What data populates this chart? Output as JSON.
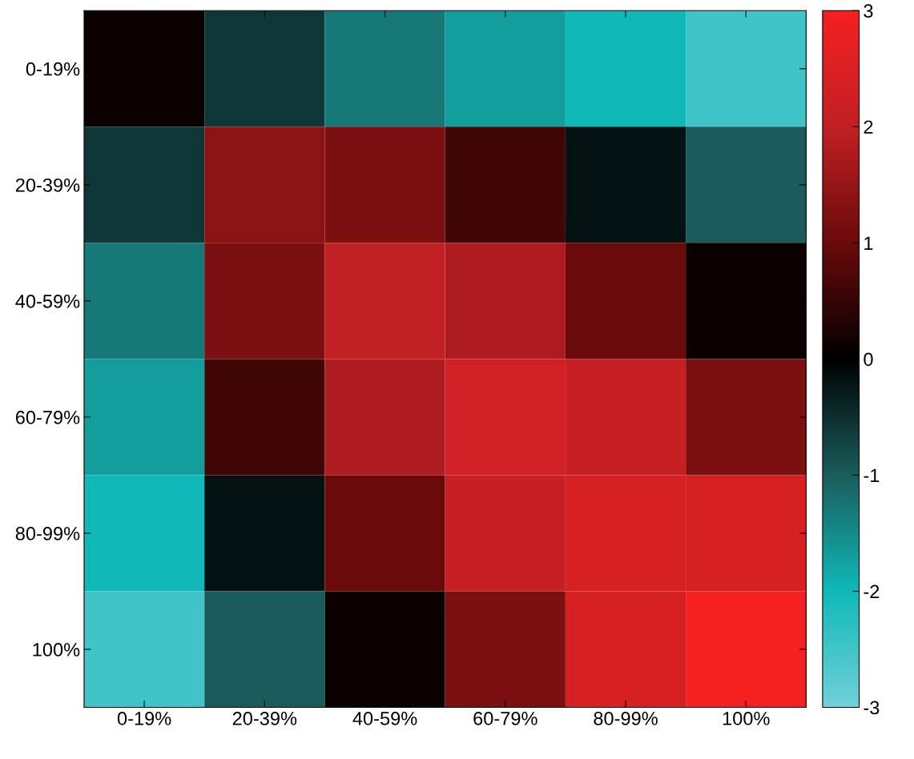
{
  "chart_data": {
    "type": "heatmap",
    "categories": [
      "0-19%",
      "20-39%",
      "40-59%",
      "60-79%",
      "80-99%",
      "100%"
    ],
    "y_categories": [
      "0-19%",
      "20-39%",
      "40-59%",
      "60-79%",
      "80-99%",
      "100%"
    ],
    "cells": [
      [
        0.1,
        -0.6,
        -1.3,
        -1.7,
        -2.0,
        -2.5
      ],
      [
        -0.6,
        1.4,
        1.2,
        0.6,
        -0.2,
        -1.0
      ],
      [
        -1.3,
        1.2,
        2.0,
        1.8,
        1.0,
        0.1
      ],
      [
        -1.7,
        0.6,
        1.8,
        2.3,
        2.1,
        1.2
      ],
      [
        -2.0,
        -0.2,
        1.0,
        2.1,
        2.4,
        2.4
      ],
      [
        -2.5,
        -1.0,
        0.1,
        1.2,
        2.4,
        3.0
      ]
    ],
    "clim": [
      -3,
      3
    ],
    "cticks": [
      -3,
      -2,
      -1,
      0,
      1,
      2,
      3
    ]
  }
}
